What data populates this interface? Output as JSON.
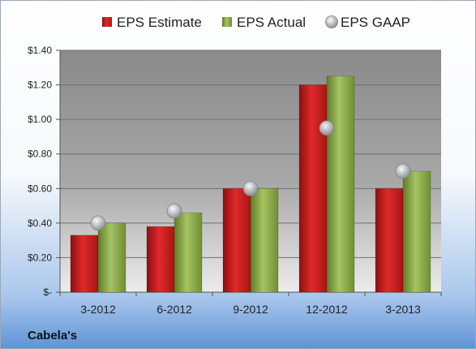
{
  "chart_data": {
    "type": "bar",
    "categories": [
      "3-2012",
      "6-2012",
      "9-2012",
      "12-2012",
      "3-2013"
    ],
    "series": [
      {
        "name": "EPS Estimate",
        "values": [
          0.33,
          0.38,
          0.6,
          1.2,
          0.6
        ],
        "color": "#cc1f1f",
        "kind": "bar"
      },
      {
        "name": "EPS Actual",
        "values": [
          0.4,
          0.46,
          0.6,
          1.25,
          0.7
        ],
        "color": "#8fb04a",
        "kind": "bar"
      },
      {
        "name": "EPS GAAP",
        "values": [
          0.4,
          0.47,
          0.6,
          0.95,
          0.7
        ],
        "color": "#b8bcc2",
        "kind": "marker"
      }
    ],
    "y_ticks": [
      "$-",
      "$0.20",
      "$0.40",
      "$0.60",
      "$0.80",
      "$1.00",
      "$1.20",
      "$1.40"
    ],
    "ylim": [
      0,
      1.4
    ],
    "grid": true,
    "legend_position": "top"
  },
  "footer": {
    "company": "Cabela's"
  }
}
